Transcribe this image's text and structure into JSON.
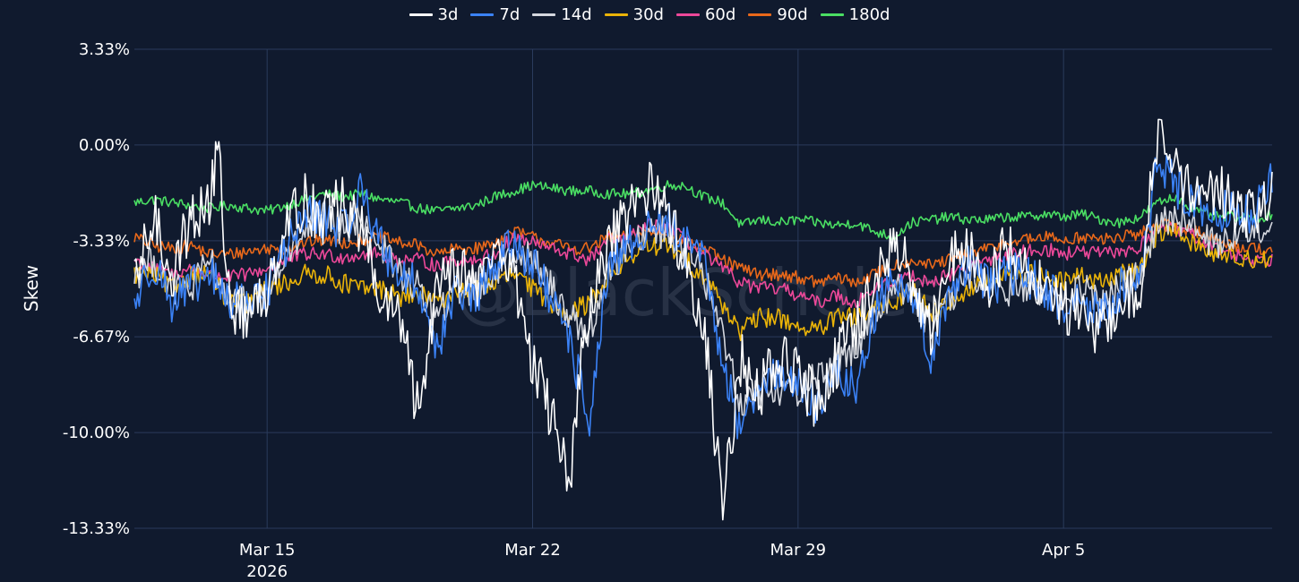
{
  "chart_data": {
    "type": "line",
    "title": "",
    "xlabel": "",
    "ylabel": "Skew",
    "watermark": "@BlackScholes",
    "ylim": [
      -13.33,
      3.33
    ],
    "yticks": [
      {
        "value": 3.33,
        "label": "3.33%"
      },
      {
        "value": 0.0,
        "label": "0.00%"
      },
      {
        "value": -3.33,
        "label": "-3.33%"
      },
      {
        "value": -6.67,
        "label": "-6.67%"
      },
      {
        "value": -10.0,
        "label": "-10.00%"
      },
      {
        "value": -13.33,
        "label": "-13.33%"
      }
    ],
    "xlim_days": [
      0,
      30
    ],
    "xticks": [
      {
        "day": 3.5,
        "label": "Mar 15",
        "sublabel": "2026"
      },
      {
        "day": 10.5,
        "label": "Mar 22",
        "sublabel": ""
      },
      {
        "day": 17.5,
        "label": "Mar 29",
        "sublabel": ""
      },
      {
        "day": 24.5,
        "label": "Apr 5",
        "sublabel": ""
      }
    ],
    "grid": true,
    "legend_position": "top-center",
    "series": [
      {
        "name": "3d",
        "color": "#ffffff",
        "noise": 1.0,
        "x": [
          0,
          0.5,
          1,
          1.5,
          2,
          2.2,
          2.5,
          3,
          3.5,
          4,
          4.5,
          5,
          5.5,
          6,
          6.5,
          7,
          7.5,
          8,
          8.5,
          9,
          9.5,
          10,
          10.5,
          11,
          11.5,
          11.8,
          12,
          12.5,
          13,
          13.5,
          14,
          14.5,
          15,
          15.5,
          16,
          16.5,
          17,
          17.5,
          18,
          18.5,
          19,
          19.5,
          20,
          20.5,
          21,
          21.5,
          22,
          22.5,
          23,
          23.5,
          24,
          24.5,
          25,
          25.5,
          26,
          26.5,
          27,
          27.5,
          28,
          28.5,
          29,
          29.5,
          30
        ],
        "y": [
          -5.0,
          -2.5,
          -4.5,
          -2.5,
          -2.0,
          0.0,
          -5.5,
          -6.0,
          -5.0,
          -2.5,
          -2.0,
          -2.5,
          -2.0,
          -3.0,
          -5.5,
          -6.0,
          -9.5,
          -4.5,
          -4.0,
          -5.0,
          -3.5,
          -4.5,
          -7.5,
          -9.5,
          -11.5,
          -7.5,
          -6.0,
          -3.5,
          -2.5,
          -1.5,
          -2.0,
          -4.0,
          -6.0,
          -12.5,
          -7.5,
          -8.5,
          -7.5,
          -8.0,
          -9.0,
          -7.5,
          -6.5,
          -5.0,
          -3.5,
          -4.5,
          -6.5,
          -4.0,
          -3.5,
          -5.0,
          -3.5,
          -4.0,
          -5.0,
          -5.5,
          -6.0,
          -6.5,
          -5.5,
          -5.0,
          0.5,
          -1.0,
          -2.0,
          -1.5,
          -2.0,
          -2.5,
          -1.5
        ]
      },
      {
        "name": "7d",
        "color": "#3b82f6",
        "noise": 0.75,
        "x": [
          0,
          0.5,
          1,
          1.5,
          2,
          2.5,
          3,
          3.5,
          4,
          4.5,
          5,
          5.5,
          6,
          6.5,
          7,
          7.5,
          8,
          8.5,
          9,
          9.5,
          10,
          10.5,
          11,
          11.5,
          12,
          12.5,
          13,
          13.5,
          14,
          14.5,
          15,
          15.5,
          16,
          16.5,
          17,
          17.5,
          18,
          18.5,
          19,
          19.5,
          20,
          20.5,
          21,
          21.5,
          22,
          22.5,
          23,
          23.5,
          24,
          24.5,
          25,
          25.5,
          26,
          26.5,
          27,
          27.5,
          28,
          28.5,
          29,
          29.5,
          30
        ],
        "y": [
          -5.5,
          -4.0,
          -5.5,
          -5.0,
          -4.5,
          -5.5,
          -5.5,
          -5.0,
          -3.5,
          -2.5,
          -2.5,
          -3.0,
          -1.5,
          -3.5,
          -4.5,
          -5.0,
          -7.0,
          -5.0,
          -5.5,
          -4.0,
          -3.5,
          -4.0,
          -5.5,
          -7.0,
          -9.5,
          -4.5,
          -3.5,
          -3.0,
          -2.5,
          -3.5,
          -4.0,
          -7.5,
          -10.0,
          -8.0,
          -8.0,
          -8.5,
          -9.0,
          -8.0,
          -8.5,
          -6.0,
          -4.5,
          -5.0,
          -7.5,
          -5.0,
          -4.0,
          -5.0,
          -4.5,
          -4.5,
          -5.0,
          -5.5,
          -5.5,
          -6.0,
          -5.0,
          -4.5,
          -0.5,
          -1.5,
          -2.0,
          -2.5,
          -2.0,
          -2.5,
          -1.0
        ]
      },
      {
        "name": "14d",
        "color": "#d4d7de",
        "noise": 0.6,
        "x": [
          0,
          0.5,
          1,
          1.5,
          2,
          2.5,
          3,
          3.5,
          4,
          4.5,
          5,
          5.5,
          6,
          6.5,
          7,
          7.5,
          8,
          8.5,
          9,
          9.5,
          10,
          10.5,
          11,
          11.5,
          12,
          12.5,
          13,
          13.5,
          14,
          14.5,
          15,
          15.5,
          16,
          16.5,
          17,
          17.5,
          18,
          18.5,
          19,
          19.5,
          20,
          20.5,
          21,
          21.5,
          22,
          22.5,
          23,
          23.5,
          24,
          24.5,
          25,
          25.5,
          26,
          26.5,
          27,
          27.5,
          28,
          28.5,
          29,
          29.5,
          30
        ],
        "y": [
          -4.5,
          -4.0,
          -5.0,
          -5.0,
          -4.0,
          -5.5,
          -5.5,
          -5.0,
          -4.0,
          -3.0,
          -2.5,
          -3.0,
          -2.5,
          -3.5,
          -4.5,
          -5.0,
          -6.0,
          -5.0,
          -5.0,
          -4.5,
          -3.5,
          -4.0,
          -5.0,
          -6.0,
          -6.5,
          -4.5,
          -3.5,
          -3.0,
          -3.0,
          -3.5,
          -4.5,
          -6.5,
          -9.0,
          -8.5,
          -8.5,
          -8.5,
          -8.0,
          -7.5,
          -7.0,
          -6.0,
          -5.0,
          -5.0,
          -6.5,
          -5.5,
          -4.5,
          -5.0,
          -5.0,
          -5.0,
          -5.0,
          -5.5,
          -5.0,
          -5.5,
          -5.0,
          -4.5,
          -2.5,
          -2.5,
          -3.0,
          -3.5,
          -3.0,
          -3.0,
          -2.5
        ]
      },
      {
        "name": "30d",
        "color": "#eab308",
        "noise": 0.35,
        "x": [
          0,
          0.5,
          1,
          1.5,
          2,
          2.5,
          3,
          3.5,
          4,
          4.5,
          5,
          5.5,
          6,
          6.5,
          7,
          7.5,
          8,
          8.5,
          9,
          9.5,
          10,
          10.5,
          11,
          11.5,
          12,
          12.5,
          13,
          13.5,
          14,
          14.5,
          15,
          15.5,
          16,
          16.5,
          17,
          17.5,
          18,
          18.5,
          19,
          19.5,
          20,
          20.5,
          21,
          21.5,
          22,
          22.5,
          23,
          23.5,
          24,
          24.5,
          25,
          25.5,
          26,
          26.5,
          27,
          27.5,
          28,
          28.5,
          29,
          29.5,
          30
        ],
        "y": [
          -4.5,
          -4.5,
          -5.0,
          -4.5,
          -4.5,
          -5.5,
          -5.5,
          -5.0,
          -4.8,
          -4.5,
          -4.5,
          -4.8,
          -5.0,
          -5.0,
          -5.3,
          -5.2,
          -5.5,
          -5.0,
          -5.0,
          -4.8,
          -4.5,
          -5.0,
          -5.5,
          -5.8,
          -5.5,
          -4.5,
          -4.0,
          -3.5,
          -3.5,
          -4.0,
          -4.5,
          -5.5,
          -6.5,
          -6.0,
          -6.0,
          -6.3,
          -6.5,
          -6.0,
          -6.0,
          -5.8,
          -5.5,
          -5.0,
          -5.8,
          -5.5,
          -5.0,
          -4.8,
          -4.5,
          -4.5,
          -4.5,
          -4.8,
          -4.5,
          -4.8,
          -4.5,
          -4.3,
          -3.0,
          -3.0,
          -3.5,
          -3.8,
          -3.8,
          -4.0,
          -4.0
        ]
      },
      {
        "name": "60d",
        "color": "#ec4899",
        "noise": 0.25,
        "x": [
          0,
          0.5,
          1,
          1.5,
          2,
          2.5,
          3,
          3.5,
          4,
          4.5,
          5,
          5.5,
          6,
          6.5,
          7,
          7.5,
          8,
          8.5,
          9,
          9.5,
          10,
          10.5,
          11,
          11.5,
          12,
          12.5,
          13,
          13.5,
          14,
          14.5,
          15,
          15.5,
          16,
          16.5,
          17,
          17.5,
          18,
          18.5,
          19,
          19.5,
          20,
          20.5,
          21,
          21.5,
          22,
          22.5,
          23,
          23.5,
          24,
          24.5,
          25,
          25.5,
          26,
          26.5,
          27,
          27.5,
          28,
          28.5,
          29,
          29.5,
          30
        ],
        "y": [
          -4.0,
          -4.3,
          -4.5,
          -4.3,
          -4.5,
          -4.6,
          -4.5,
          -4.3,
          -4.0,
          -3.8,
          -3.8,
          -3.9,
          -3.8,
          -3.8,
          -4.0,
          -4.0,
          -4.2,
          -4.0,
          -4.0,
          -3.8,
          -3.2,
          -3.4,
          -3.6,
          -3.8,
          -4.0,
          -3.3,
          -3.3,
          -2.8,
          -2.8,
          -3.3,
          -3.8,
          -4.3,
          -4.8,
          -5.0,
          -5.0,
          -5.2,
          -5.5,
          -5.2,
          -5.5,
          -5.0,
          -4.8,
          -4.5,
          -4.8,
          -4.5,
          -4.2,
          -4.0,
          -3.8,
          -3.7,
          -3.6,
          -3.8,
          -3.7,
          -3.8,
          -3.7,
          -3.6,
          -2.8,
          -3.0,
          -3.2,
          -3.6,
          -3.8,
          -4.0,
          -4.0
        ]
      },
      {
        "name": "90d",
        "color": "#e8681a",
        "noise": 0.22,
        "x": [
          0,
          0.5,
          1,
          1.5,
          2,
          2.5,
          3,
          3.5,
          4,
          4.5,
          5,
          5.5,
          6,
          6.5,
          7,
          7.5,
          8,
          8.5,
          9,
          9.5,
          10,
          10.5,
          11,
          11.5,
          12,
          12.5,
          13,
          13.5,
          14,
          14.5,
          15,
          15.5,
          16,
          16.5,
          17,
          17.5,
          18,
          18.5,
          19,
          19.5,
          20,
          20.5,
          21,
          21.5,
          22,
          22.5,
          23,
          23.5,
          24,
          24.5,
          25,
          25.5,
          26,
          26.5,
          27,
          27.5,
          28,
          28.5,
          29,
          29.5,
          30
        ],
        "y": [
          -3.2,
          -3.5,
          -3.6,
          -3.5,
          -3.8,
          -3.8,
          -3.7,
          -3.6,
          -3.6,
          -3.4,
          -3.3,
          -3.4,
          -3.3,
          -3.2,
          -3.4,
          -3.5,
          -3.8,
          -3.6,
          -3.6,
          -3.4,
          -3.0,
          -3.2,
          -3.4,
          -3.6,
          -3.6,
          -3.2,
          -3.2,
          -3.0,
          -3.0,
          -3.4,
          -3.6,
          -4.0,
          -4.3,
          -4.5,
          -4.5,
          -4.6,
          -4.8,
          -4.6,
          -4.8,
          -4.5,
          -4.2,
          -4.0,
          -4.2,
          -4.0,
          -3.8,
          -3.6,
          -3.4,
          -3.3,
          -3.2,
          -3.3,
          -3.2,
          -3.3,
          -3.2,
          -3.1,
          -2.7,
          -2.9,
          -3.0,
          -3.3,
          -3.5,
          -3.6,
          -3.6
        ]
      },
      {
        "name": "180d",
        "color": "#4ade63",
        "noise": 0.18,
        "x": [
          0,
          0.5,
          1,
          1.5,
          2,
          2.5,
          3,
          3.5,
          4,
          4.5,
          5,
          5.5,
          6,
          6.5,
          7,
          7.5,
          8,
          8.5,
          9,
          9.5,
          10,
          10.5,
          11,
          11.5,
          12,
          12.5,
          13,
          13.5,
          14,
          14.5,
          15,
          15.5,
          16,
          16.5,
          17,
          17.5,
          18,
          18.5,
          19,
          19.5,
          20,
          20.5,
          21,
          21.5,
          22,
          22.5,
          23,
          23.5,
          24,
          24.5,
          25,
          25.5,
          26,
          26.5,
          27,
          27.5,
          28,
          28.5,
          29,
          29.5,
          30
        ],
        "y": [
          -2.0,
          -1.9,
          -2.0,
          -2.1,
          -2.2,
          -2.1,
          -2.2,
          -2.3,
          -2.1,
          -1.9,
          -1.7,
          -1.8,
          -1.7,
          -1.9,
          -2.0,
          -2.2,
          -2.3,
          -2.2,
          -2.1,
          -1.8,
          -1.6,
          -1.4,
          -1.5,
          -1.6,
          -1.6,
          -1.7,
          -1.7,
          -1.6,
          -1.4,
          -1.4,
          -1.8,
          -2.0,
          -2.8,
          -2.6,
          -2.7,
          -2.6,
          -2.7,
          -2.8,
          -2.7,
          -3.0,
          -3.2,
          -2.7,
          -2.6,
          -2.5,
          -2.6,
          -2.6,
          -2.5,
          -2.5,
          -2.4,
          -2.5,
          -2.4,
          -2.6,
          -2.7,
          -2.5,
          -2.0,
          -1.8,
          -2.3,
          -2.5,
          -2.5,
          -2.6,
          -2.4
        ]
      }
    ]
  }
}
